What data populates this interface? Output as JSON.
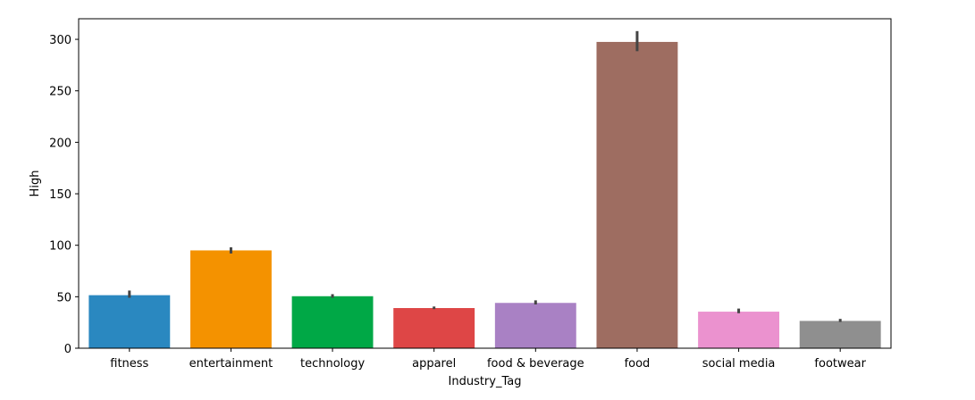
{
  "chart_data": {
    "type": "bar",
    "xlabel": "Industry_Tag",
    "ylabel": "High",
    "ylim": [
      0,
      320
    ],
    "yticks": [
      0,
      50,
      100,
      150,
      200,
      250,
      300
    ],
    "grid": false,
    "legend": "none",
    "categories": [
      "fitness",
      "entertainment",
      "technology",
      "apparel",
      "food & beverage",
      "food",
      "social media",
      "footwear"
    ],
    "values": [
      51.5,
      95,
      50.5,
      39,
      44,
      297.5,
      35.5,
      26.5
    ],
    "error_low": [
      49,
      92,
      49,
      38,
      42.5,
      288.5,
      34,
      25.5
    ],
    "error_high": [
      56,
      98,
      52.5,
      40.5,
      46.5,
      308,
      38.5,
      28.5
    ],
    "colors": [
      "#2a88c0",
      "#f49200",
      "#00a846",
      "#de4646",
      "#a981c4",
      "#9e6d61",
      "#eb92cf",
      "#8f8f8f"
    ],
    "error_color": "#444444"
  }
}
